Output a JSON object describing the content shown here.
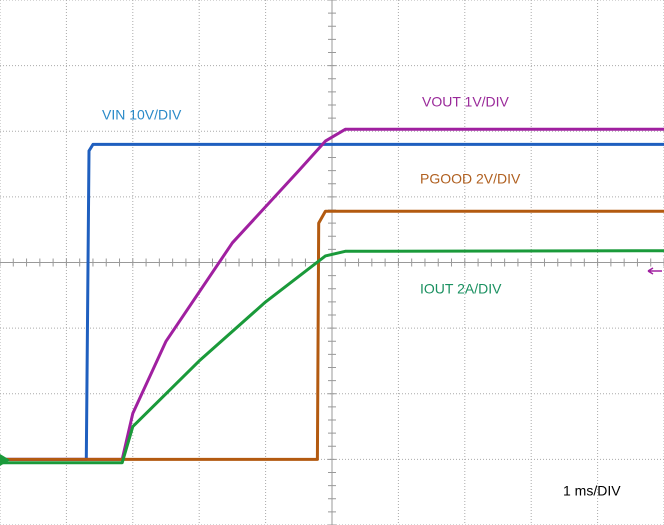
{
  "chart_data": {
    "type": "line",
    "time_scale": "1 ms/DIV",
    "xlim": [
      0,
      10
    ],
    "ylim": [
      -4,
      4
    ],
    "xticks": [
      0,
      1,
      2,
      3,
      4,
      5,
      6,
      7,
      8,
      9,
      10
    ],
    "yticks": [
      -4,
      -3,
      -2,
      -1,
      0,
      1,
      2,
      3,
      4
    ],
    "grid": true,
    "series": [
      {
        "name": "VIN 10V/DIV",
        "color": "#1f5fbf",
        "label_color": "#2a8ac8",
        "x": [
          0,
          1.3,
          1.34,
          1.4,
          10
        ],
        "values": [
          -3,
          -3,
          1.7,
          1.8,
          1.8
        ]
      },
      {
        "name": "VOUT 1V/DIV",
        "color": "#a020a0",
        "label_color": "#9a2a9a",
        "x": [
          0,
          1.84,
          2.0,
          2.5,
          3.5,
          4.5,
          4.9,
          5.2,
          10
        ],
        "values": [
          -3,
          -3,
          -2.3,
          -1.2,
          0.3,
          1.4,
          1.85,
          2.03,
          2.03
        ]
      },
      {
        "name": "PGOOD 2V/DIV",
        "color": "#b35a10",
        "label_color": "#b06020",
        "x": [
          0,
          4.78,
          4.8,
          4.9,
          10
        ],
        "values": [
          -3,
          -3,
          0.6,
          0.78,
          0.78
        ]
      },
      {
        "name": "IOUT 2A/DIV",
        "color": "#1a9a3a",
        "label_color": "#1a9060",
        "x": [
          0,
          1.84,
          2.0,
          3.0,
          4.0,
          4.9,
          5.2,
          10
        ],
        "values": [
          -3.05,
          -3.05,
          -2.5,
          -1.5,
          -0.6,
          0.1,
          0.17,
          0.18
        ]
      }
    ]
  }
}
